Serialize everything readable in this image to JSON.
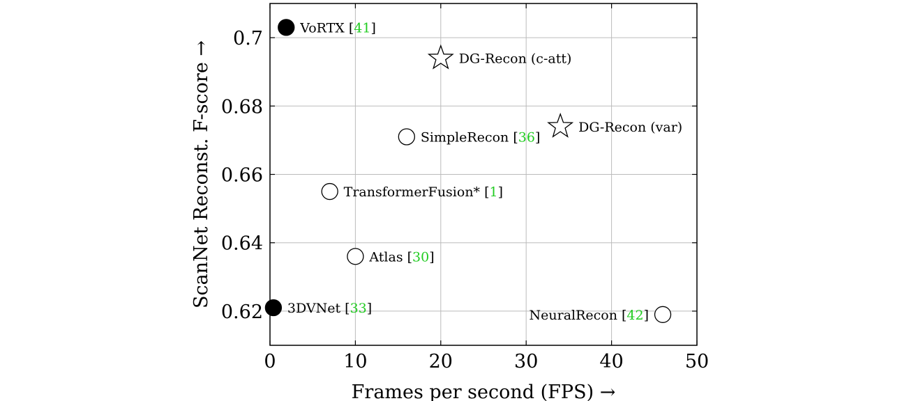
{
  "chart_data": {
    "type": "scatter",
    "xlabel": "Frames per second (FPS) →",
    "ylabel": "ScanNet Reconst. F-score →",
    "xlim": [
      0,
      50
    ],
    "ylim": [
      0.61,
      0.71
    ],
    "xticks": [
      "0",
      "10",
      "20",
      "30",
      "40",
      "50"
    ],
    "xtick_values": [
      0,
      10,
      20,
      30,
      40,
      50
    ],
    "yticks": [
      "0.62",
      "0.64",
      "0.66",
      "0.68",
      "0.7"
    ],
    "ytick_values": [
      0.62,
      0.64,
      0.66,
      0.68,
      0.7
    ],
    "grid": true,
    "colors": {
      "grid": "#bbbbbb",
      "citation": "#22cc22",
      "marker": "#000000"
    },
    "points": [
      {
        "name": "VoRTX",
        "cite": "41",
        "x": 1.9,
        "y": 0.703,
        "marker": "filled-circle",
        "label_side": "right"
      },
      {
        "name": "DG-Recon (c-att)",
        "cite": "",
        "x": 20,
        "y": 0.694,
        "marker": "star",
        "label_side": "right"
      },
      {
        "name": "DG-Recon (var)",
        "cite": "",
        "x": 34,
        "y": 0.674,
        "marker": "star",
        "label_side": "right"
      },
      {
        "name": "SimpleRecon",
        "cite": "36",
        "x": 16,
        "y": 0.671,
        "marker": "open-circle",
        "label_side": "right"
      },
      {
        "name": "TransformerFusion*",
        "cite": "1",
        "x": 7,
        "y": 0.655,
        "marker": "open-circle",
        "label_side": "right"
      },
      {
        "name": "Atlas",
        "cite": "30",
        "x": 10,
        "y": 0.636,
        "marker": "open-circle",
        "label_side": "right"
      },
      {
        "name": "3DVNet",
        "cite": "33",
        "x": 0.4,
        "y": 0.621,
        "marker": "filled-circle",
        "label_side": "right"
      },
      {
        "name": "NeuralRecon",
        "cite": "42",
        "x": 46,
        "y": 0.619,
        "marker": "open-circle",
        "label_side": "left"
      }
    ]
  }
}
